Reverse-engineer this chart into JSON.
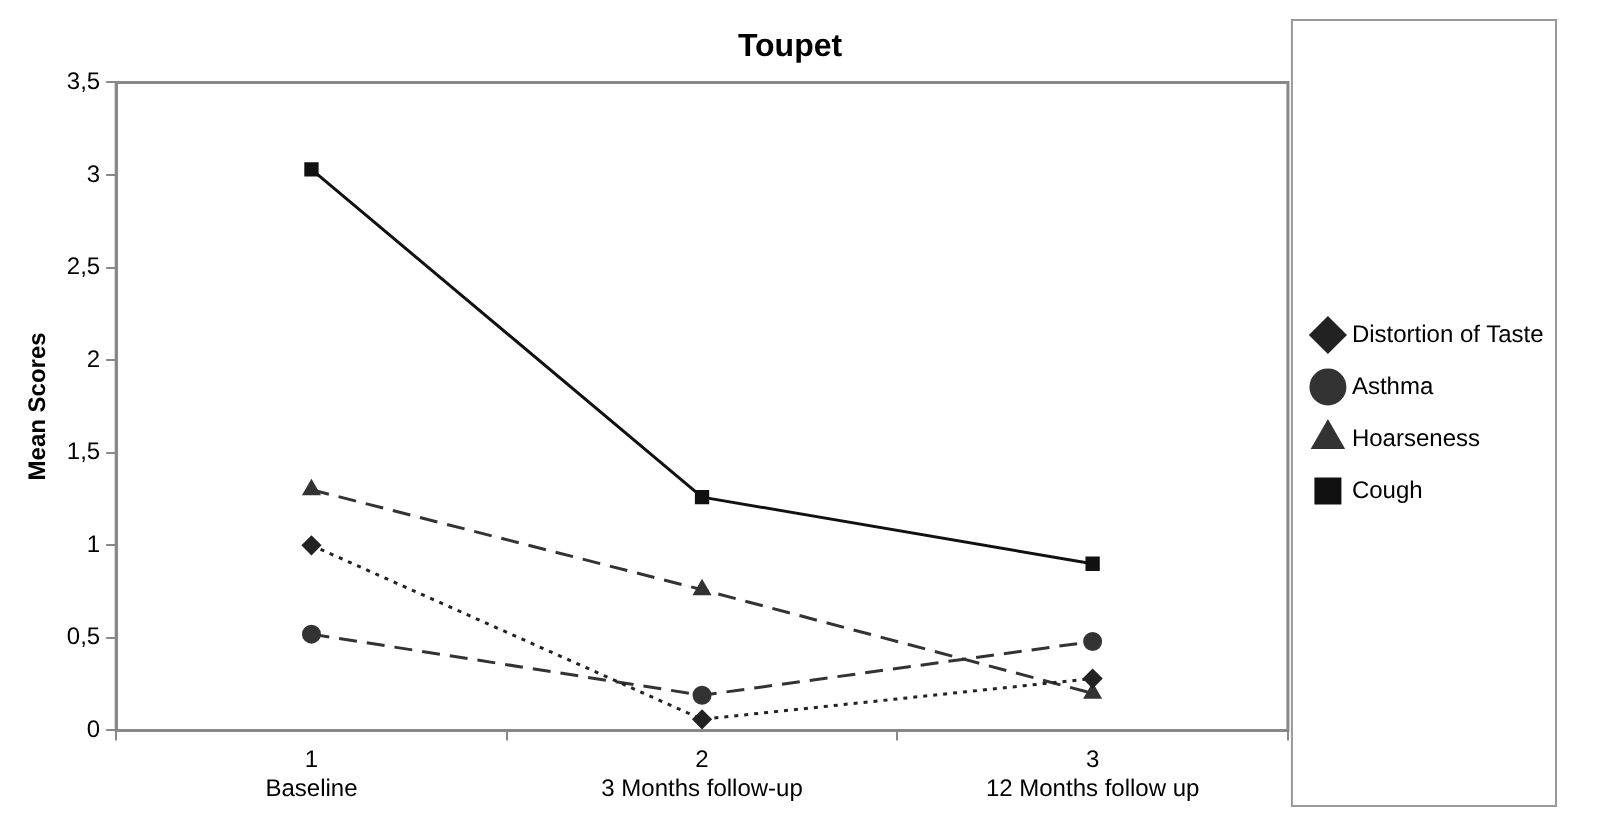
{
  "chart_data": {
    "type": "line",
    "title": "Toupet",
    "ylabel": "Mean Scores",
    "categories": [
      "1\nBaseline",
      "2\n3 Months follow-up",
      "3\n12 Months follow up"
    ],
    "series": [
      {
        "name": "Distortion of Taste",
        "color": "#222222",
        "values": [
          1.0,
          0.06,
          0.28
        ],
        "marker": "diamond",
        "line_style": "dotted"
      },
      {
        "name": "Asthma",
        "color": "#333333",
        "values": [
          0.52,
          0.19,
          0.48
        ],
        "marker": "circle",
        "line_style": "dashed"
      },
      {
        "name": "Hoarseness",
        "color": "#333333",
        "values": [
          1.3,
          0.76,
          0.2
        ],
        "marker": "triangle",
        "line_style": "dashed"
      },
      {
        "name": "Cough",
        "color": "#111111",
        "values": [
          3.03,
          1.26,
          0.9
        ],
        "marker": "square",
        "line_style": "solid"
      }
    ],
    "ylim": [
      0,
      3.5
    ],
    "yticks": [
      0,
      {
        "value": 0.5,
        "label": "0,5"
      },
      1,
      {
        "value": 1.5,
        "label": "1,5"
      },
      2,
      {
        "value": 2.5,
        "label": "2,5"
      },
      3,
      {
        "value": 3.5,
        "label": "3,5"
      }
    ],
    "grid": false,
    "legend": "right"
  }
}
